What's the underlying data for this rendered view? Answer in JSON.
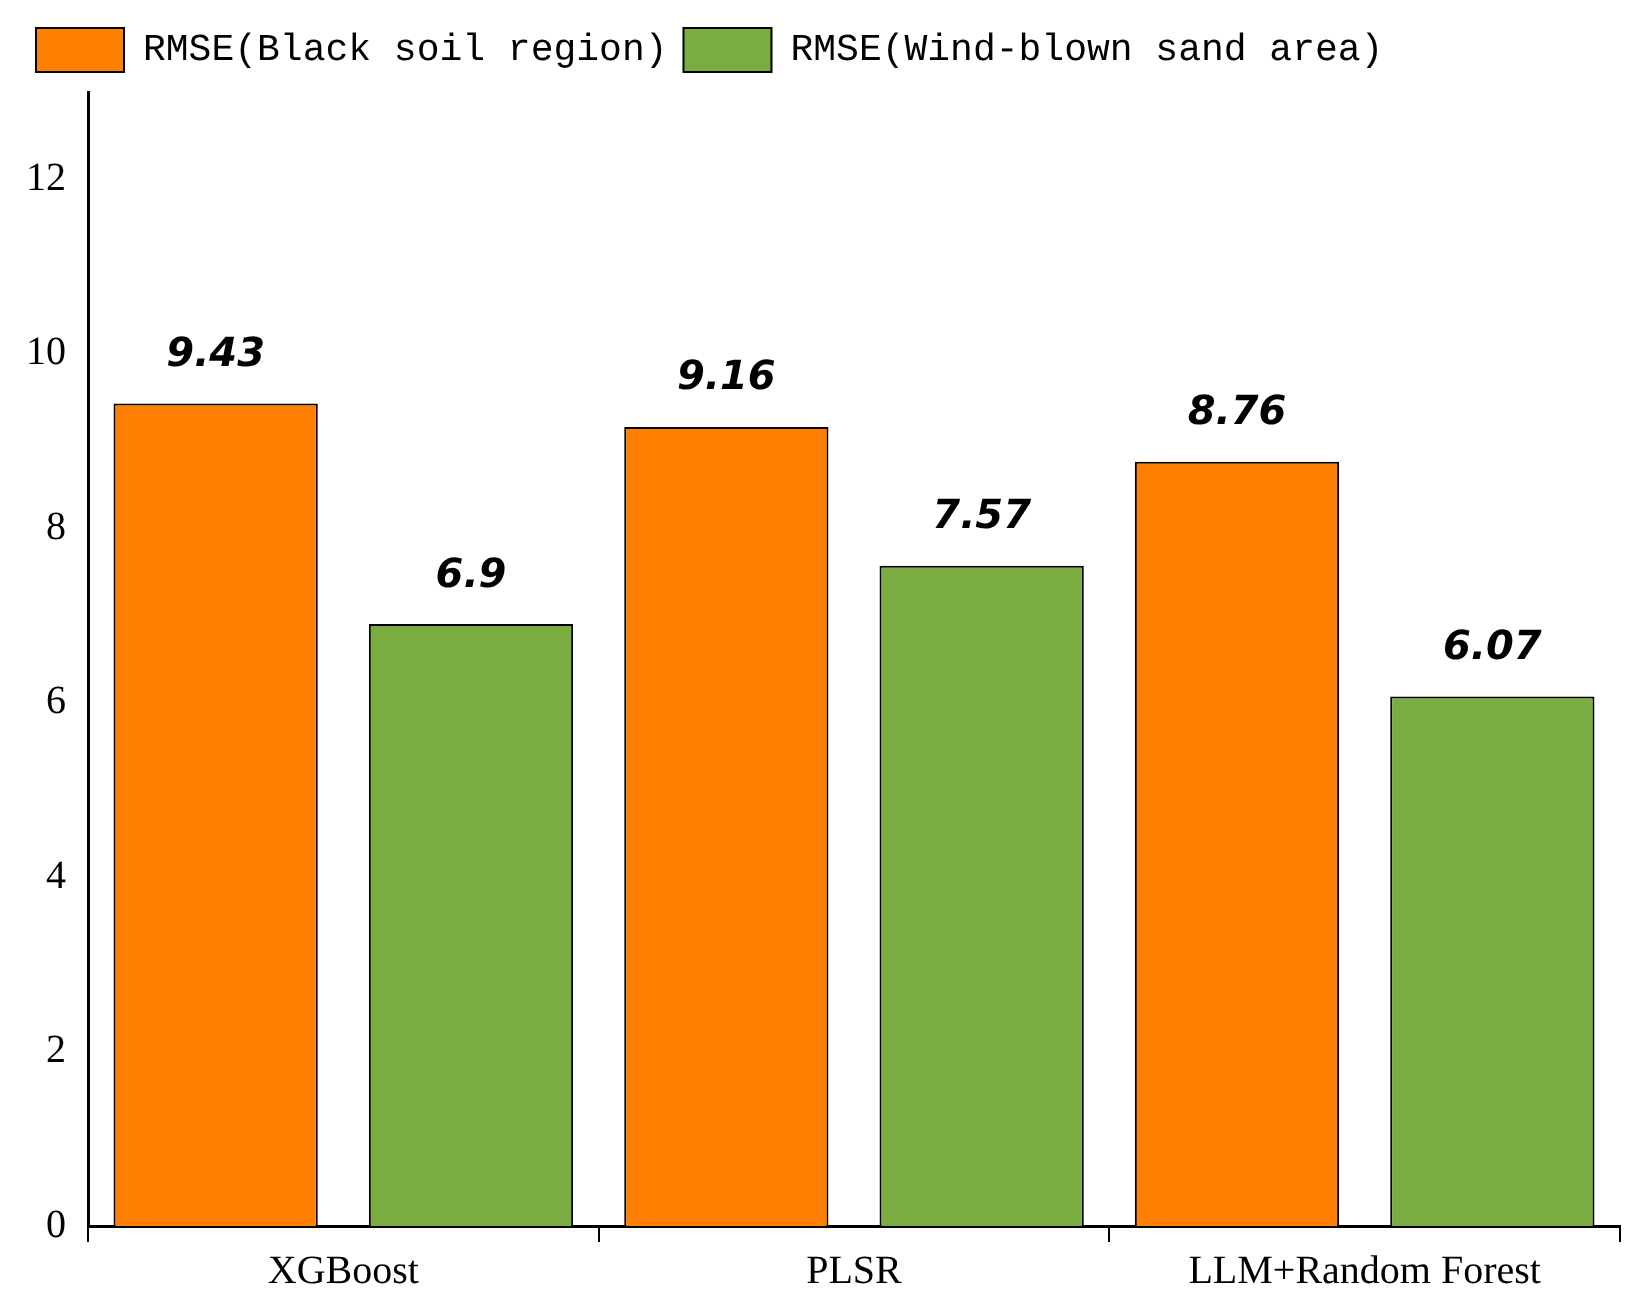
{
  "chart_data": {
    "type": "bar",
    "categories": [
      "XGBoost",
      "PLSR",
      "LLM+Random Forest"
    ],
    "series": [
      {
        "name": "RMSE(Black soil region)",
        "color": "#ff8000",
        "values": [
          9.43,
          9.16,
          8.76
        ]
      },
      {
        "name": "RMSE(Wind-blown sand area)",
        "color": "#7aac41",
        "values": [
          6.9,
          7.57,
          6.07
        ]
      }
    ],
    "ylim": [
      0,
      13
    ],
    "yticks": [
      0,
      2,
      4,
      6,
      8,
      10,
      12
    ],
    "grid": false,
    "legend": "top left",
    "data_labels": true
  }
}
